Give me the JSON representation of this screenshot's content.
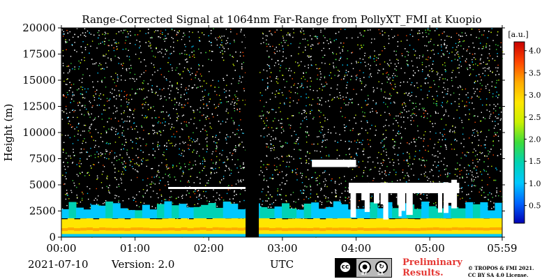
{
  "chart_data": {
    "type": "heatmap",
    "title": "Range-Corrected Signal at 1064nm Far-Range from PollyXT_FMI at Kuopio",
    "xlabel": "UTC",
    "ylabel": "Height (m)",
    "x_ticks": [
      "00:00",
      "01:00",
      "02:00",
      "03:00",
      "04:00",
      "05:00",
      "05:59"
    ],
    "x_range_hours": [
      0,
      5.983
    ],
    "ylim": [
      0,
      20000
    ],
    "y_ticks": [
      0,
      2500,
      5000,
      7500,
      10000,
      12500,
      15000,
      17500,
      20000
    ],
    "colorbar": {
      "unit": "[a.u.]",
      "range": [
        0.1,
        4.2
      ],
      "ticks": [
        "0.5",
        "1.0",
        "1.5",
        "2.0",
        "2.5",
        "3.0",
        "3.5",
        "4.0"
      ],
      "colors": [
        "#0000b4",
        "#0064ff",
        "#00c8ff",
        "#00d2b4",
        "#3cdc3c",
        "#c8f000",
        "#ffe600",
        "#ffaa00",
        "#ff4600",
        "#c80000"
      ]
    },
    "no_data_gap_hours": [
      2.5,
      2.68
    ],
    "layers": [
      {
        "kind": "boundary_layer",
        "height_top_m": 1800,
        "level": 3.0
      },
      {
        "kind": "aerosol_layer",
        "height_m": [
          1800,
          3000
        ],
        "level": 1.0
      },
      {
        "kind": "cloud",
        "time_hours": [
          1.45,
          2.5
        ],
        "height_m": [
          4600,
          4800
        ]
      },
      {
        "kind": "cloud",
        "time_hours": [
          3.4,
          4.0
        ],
        "height_m": [
          6700,
          7400
        ]
      },
      {
        "kind": "cloud",
        "time_hours": [
          3.9,
          5.4
        ],
        "height_m": [
          1500,
          5500
        ]
      }
    ],
    "grid": false
  },
  "footer": {
    "date": "2021-07-10",
    "version": "Version: 2.0",
    "xunit": "UTC",
    "preliminary": [
      "Preliminary",
      "Results."
    ],
    "copyright": [
      "© TROPOS & FMI 2021.",
      "CC BY SA 4.0 License."
    ],
    "cc_labels": [
      "BY",
      "SA"
    ],
    "cc_symbol": "cc"
  }
}
